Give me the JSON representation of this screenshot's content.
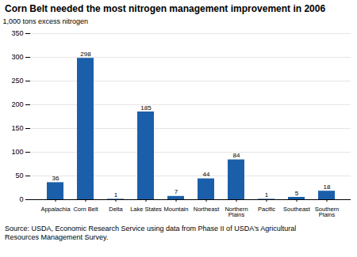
{
  "chart_data": {
    "type": "bar",
    "title": "Corn Belt needed the most nitrogen management improvement in 2006",
    "ylabel": "1,000 tons excess nitrogen",
    "source": "Source:  USDA, Economic Research Service using data from Phase II of USDA's Agricultural\nResources Management Survey.",
    "categories": [
      "Appalachia",
      "Corn Belt",
      "Delta",
      "Lake States",
      "Mountain",
      "Northeast",
      "Northern\nPlains",
      "Pacific",
      "Southeast",
      "Southern\nPlains"
    ],
    "values": [
      36,
      298,
      1,
      185,
      7,
      44,
      84,
      1,
      5,
      18
    ],
    "color": "#1b5faa",
    "ylim": [
      0,
      350
    ],
    "yticks": [
      0,
      50,
      100,
      150,
      200,
      250,
      300,
      350
    ],
    "grid": true,
    "data_labels": true
  }
}
